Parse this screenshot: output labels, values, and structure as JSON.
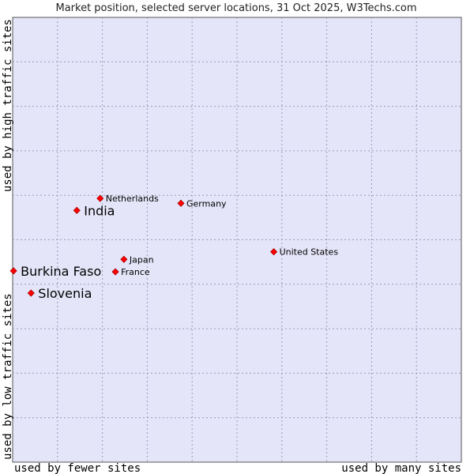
{
  "chart_data": {
    "type": "scatter",
    "title": "Market position, selected server locations, 31 Oct 2025, W3Techs.com",
    "xlabel_left": "used by fewer sites",
    "xlabel_right": "used by many sites",
    "ylabel_bottom": "used by low traffic sites",
    "ylabel_top": "used by high traffic sites",
    "xlim": [
      0,
      100
    ],
    "ylim": [
      0,
      100
    ],
    "grid": true,
    "colors": {
      "plot_bg": "#e5e5f9",
      "grid": "#9a9ab4",
      "point": "#ff0000",
      "point_edge": "#aa0000"
    },
    "points": [
      {
        "label": "Netherlands",
        "x": 19.5,
        "y": 59.3,
        "emphasis": false
      },
      {
        "label": "India",
        "x": 14.3,
        "y": 56.6,
        "emphasis": true
      },
      {
        "label": "Germany",
        "x": 37.5,
        "y": 58.2,
        "emphasis": false
      },
      {
        "label": "United States",
        "x": 58.2,
        "y": 47.3,
        "emphasis": false
      },
      {
        "label": "Japan",
        "x": 24.8,
        "y": 45.6,
        "emphasis": false
      },
      {
        "label": "France",
        "x": 22.9,
        "y": 42.8,
        "emphasis": false
      },
      {
        "label": "Burkina Faso",
        "x": 0.2,
        "y": 43.0,
        "emphasis": true
      },
      {
        "label": "Slovenia",
        "x": 4.1,
        "y": 38.0,
        "emphasis": true
      }
    ]
  }
}
